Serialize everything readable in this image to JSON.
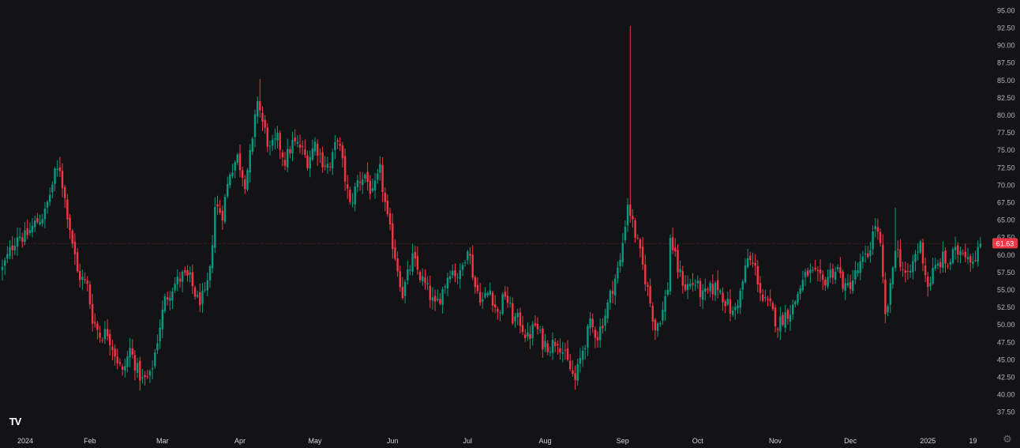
{
  "chart_data": {
    "type": "candlestick",
    "ylim": [
      36.0,
      95.5
    ],
    "y_ticks": [
      "95.00",
      "92.50",
      "90.00",
      "87.50",
      "85.00",
      "82.50",
      "80.00",
      "77.50",
      "75.00",
      "72.50",
      "70.00",
      "67.50",
      "65.00",
      "62.50",
      "60.00",
      "57.50",
      "55.00",
      "52.50",
      "50.00",
      "47.50",
      "45.00",
      "42.50",
      "40.00",
      "37.50"
    ],
    "x_labels": [
      {
        "label": "2024",
        "date": "2024-01-01"
      },
      {
        "label": "Feb",
        "date": "2024-02-01"
      },
      {
        "label": "Mar",
        "date": "2024-03-01"
      },
      {
        "label": "Apr",
        "date": "2024-04-01"
      },
      {
        "label": "May",
        "date": "2024-05-01"
      },
      {
        "label": "Jun",
        "date": "2024-06-01"
      },
      {
        "label": "Jul",
        "date": "2024-07-01"
      },
      {
        "label": "Aug",
        "date": "2024-08-01"
      },
      {
        "label": "Sep",
        "date": "2024-09-01"
      },
      {
        "label": "Oct",
        "date": "2024-10-01"
      },
      {
        "label": "Nov",
        "date": "2024-11-01"
      },
      {
        "label": "Dec",
        "date": "2024-12-01"
      },
      {
        "label": "2025",
        "date": "2025-01-01"
      },
      {
        "label": "19",
        "date": "2025-01-19"
      }
    ],
    "x_range": [
      "2023-12-28",
      "2025-01-23"
    ],
    "last_price": "61.63",
    "last_price_value": 61.63,
    "grid": false,
    "up_color": "#089981",
    "down_color": "#f23645",
    "anchors": [
      [
        "2023-12-28",
        58.0
      ],
      [
        "2024-01-03",
        63.0
      ],
      [
        "2024-01-06",
        62.5
      ],
      [
        "2024-01-10",
        64.5
      ],
      [
        "2024-01-14",
        66.0
      ],
      [
        "2024-01-18",
        71.5
      ],
      [
        "2024-01-20",
        72.5
      ],
      [
        "2024-01-22",
        68.0
      ],
      [
        "2024-01-24",
        64.0
      ],
      [
        "2024-01-27",
        57.5
      ],
      [
        "2024-01-31",
        55.5
      ],
      [
        "2024-02-02",
        51.0
      ],
      [
        "2024-02-05",
        48.5
      ],
      [
        "2024-02-08",
        49.0
      ],
      [
        "2024-02-11",
        46.0
      ],
      [
        "2024-02-14",
        43.0
      ],
      [
        "2024-02-17",
        46.5
      ],
      [
        "2024-02-20",
        43.5
      ],
      [
        "2024-02-22",
        42.0
      ],
      [
        "2024-02-25",
        42.5
      ],
      [
        "2024-02-27",
        46.0
      ],
      [
        "2024-02-29",
        50.0
      ],
      [
        "2024-03-02",
        53.5
      ],
      [
        "2024-03-05",
        55.5
      ],
      [
        "2024-03-09",
        57.0
      ],
      [
        "2024-03-12",
        56.5
      ],
      [
        "2024-03-15",
        53.5
      ],
      [
        "2024-03-18",
        54.0
      ],
      [
        "2024-03-20",
        57.5
      ],
      [
        "2024-03-22",
        67.0
      ],
      [
        "2024-03-25",
        66.0
      ],
      [
        "2024-03-28",
        72.0
      ],
      [
        "2024-03-31",
        74.0
      ],
      [
        "2024-04-03",
        70.5
      ],
      [
        "2024-04-06",
        76.0
      ],
      [
        "2024-04-08",
        82.5
      ],
      [
        "2024-04-10",
        79.0
      ],
      [
        "2024-04-13",
        75.0
      ],
      [
        "2024-04-16",
        76.5
      ],
      [
        "2024-04-19",
        73.5
      ],
      [
        "2024-04-22",
        76.0
      ],
      [
        "2024-04-25",
        75.5
      ],
      [
        "2024-04-28",
        73.5
      ],
      [
        "2024-05-01",
        76.0
      ],
      [
        "2024-05-04",
        73.5
      ],
      [
        "2024-05-07",
        72.5
      ],
      [
        "2024-05-10",
        77.0
      ],
      [
        "2024-05-13",
        71.0
      ],
      [
        "2024-05-15",
        67.0
      ],
      [
        "2024-05-18",
        70.5
      ],
      [
        "2024-05-21",
        71.5
      ],
      [
        "2024-05-24",
        68.5
      ],
      [
        "2024-05-27",
        72.0
      ],
      [
        "2024-05-30",
        65.0
      ],
      [
        "2024-06-02",
        60.0
      ],
      [
        "2024-06-05",
        54.5
      ],
      [
        "2024-06-09",
        59.5
      ],
      [
        "2024-06-12",
        57.0
      ],
      [
        "2024-06-15",
        55.0
      ],
      [
        "2024-06-18",
        52.5
      ],
      [
        "2024-06-21",
        55.0
      ],
      [
        "2024-06-24",
        58.0
      ],
      [
        "2024-06-28",
        57.0
      ],
      [
        "2024-07-01",
        61.5
      ],
      [
        "2024-07-04",
        55.5
      ],
      [
        "2024-07-07",
        53.5
      ],
      [
        "2024-07-10",
        55.0
      ],
      [
        "2024-07-13",
        51.5
      ],
      [
        "2024-07-16",
        54.5
      ],
      [
        "2024-07-19",
        51.0
      ],
      [
        "2024-07-22",
        50.5
      ],
      [
        "2024-07-25",
        48.0
      ],
      [
        "2024-07-28",
        50.0
      ],
      [
        "2024-07-31",
        47.5
      ],
      [
        "2024-08-03",
        47.0
      ],
      [
        "2024-08-06",
        48.0
      ],
      [
        "2024-08-10",
        44.5
      ],
      [
        "2024-08-13",
        42.0
      ],
      [
        "2024-08-16",
        46.5
      ],
      [
        "2024-08-19",
        50.0
      ],
      [
        "2024-08-22",
        48.5
      ],
      [
        "2024-08-25",
        51.5
      ],
      [
        "2024-08-28",
        55.5
      ],
      [
        "2024-08-31",
        59.0
      ],
      [
        "2024-09-03",
        67.5
      ],
      [
        "2024-09-06",
        63.0
      ],
      [
        "2024-09-08",
        60.0
      ],
      [
        "2024-09-11",
        55.0
      ],
      [
        "2024-09-14",
        49.5
      ],
      [
        "2024-09-17",
        52.0
      ],
      [
        "2024-09-19",
        55.5
      ],
      [
        "2024-09-20",
        62.5
      ],
      [
        "2024-09-23",
        58.0
      ],
      [
        "2024-09-26",
        55.5
      ],
      [
        "2024-09-30",
        56.0
      ],
      [
        "2024-10-03",
        54.0
      ],
      [
        "2024-10-06",
        55.0
      ],
      [
        "2024-10-09",
        55.5
      ],
      [
        "2024-10-12",
        53.5
      ],
      [
        "2024-10-15",
        51.5
      ],
      [
        "2024-10-18",
        54.5
      ],
      [
        "2024-10-21",
        59.5
      ],
      [
        "2024-10-24",
        58.0
      ],
      [
        "2024-10-27",
        53.5
      ],
      [
        "2024-10-30",
        52.5
      ],
      [
        "2024-11-02",
        50.0
      ],
      [
        "2024-11-05",
        51.5
      ],
      [
        "2024-11-08",
        52.5
      ],
      [
        "2024-11-11",
        55.5
      ],
      [
        "2024-11-14",
        57.5
      ],
      [
        "2024-11-17",
        57.0
      ],
      [
        "2024-11-20",
        56.0
      ],
      [
        "2024-11-23",
        57.5
      ],
      [
        "2024-11-26",
        58.0
      ],
      [
        "2024-11-29",
        55.0
      ],
      [
        "2024-12-02",
        56.5
      ],
      [
        "2024-12-05",
        58.5
      ],
      [
        "2024-12-08",
        60.0
      ],
      [
        "2024-12-11",
        64.5
      ],
      [
        "2024-12-13",
        61.0
      ],
      [
        "2024-12-15",
        51.0
      ],
      [
        "2024-12-17",
        55.0
      ],
      [
        "2024-12-19",
        61.5
      ],
      [
        "2024-12-22",
        58.0
      ],
      [
        "2024-12-24",
        56.5
      ],
      [
        "2024-12-27",
        60.0
      ],
      [
        "2024-12-29",
        61.5
      ],
      [
        "2024-12-31",
        57.5
      ],
      [
        "2025-01-01",
        55.5
      ],
      [
        "2025-01-03",
        57.5
      ],
      [
        "2025-01-05",
        58.5
      ],
      [
        "2025-01-07",
        59.5
      ],
      [
        "2025-01-09",
        58.5
      ],
      [
        "2025-01-11",
        60.0
      ],
      [
        "2025-01-13",
        60.5
      ],
      [
        "2025-01-15",
        61.0
      ],
      [
        "2025-01-17",
        60.0
      ],
      [
        "2025-01-19",
        59.5
      ],
      [
        "2025-01-21",
        61.0
      ],
      [
        "2025-01-22",
        61.63
      ]
    ],
    "spikes": [
      {
        "date": "2024-09-04",
        "high": 92.8
      },
      {
        "date": "2024-04-09",
        "high": 85.2
      },
      {
        "date": "2024-12-11",
        "high": 65.3
      },
      {
        "date": "2024-12-19",
        "high": 66.8
      }
    ]
  },
  "logo": {
    "text": "TV",
    "icon": "tradingview-logo-icon"
  },
  "settings": {
    "icon": "gear-icon",
    "glyph": "⚙"
  }
}
